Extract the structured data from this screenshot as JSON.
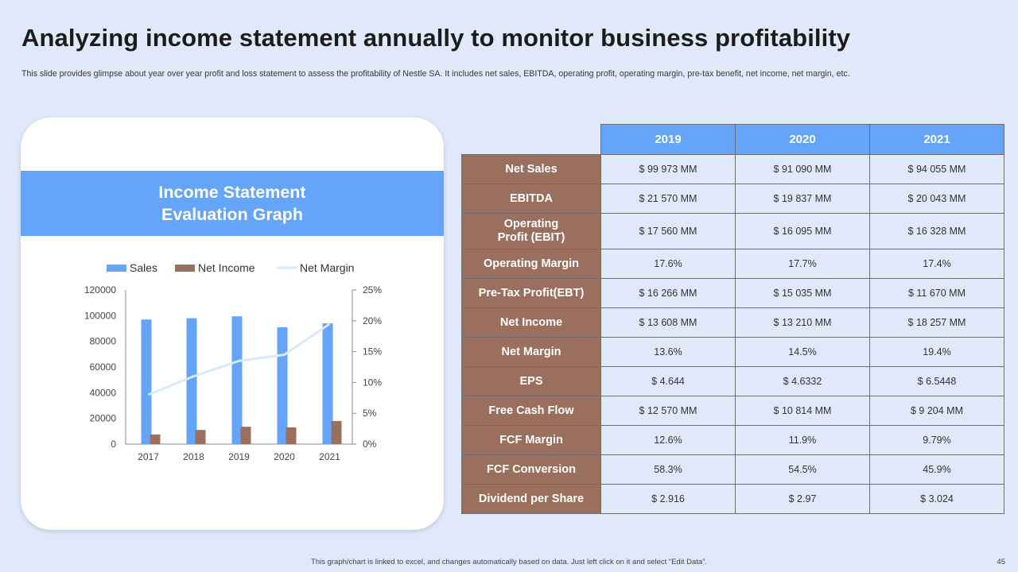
{
  "title": "Analyzing income statement annually to monitor business profitability",
  "subtitle": "This slide provides glimpse about year over year profit and loss statement to assess the profitability of Nestle SA.  It includes net sales, EBITDA,  operating profit, operating margin, pre-tax benefit, net income, net margin, etc.",
  "chart_banner": "Income Statement\nEvaluation Graph",
  "colors": {
    "sales": "#65a5f9",
    "net_income": "#9b6f5e",
    "net_margin": "#dbe8fa",
    "banner": "#65a5f9",
    "row_label_bg": "#9b6f5e",
    "cell_bg": "#dfe9fa",
    "page_bg": "#dfe9fa"
  },
  "chart_data": {
    "type": "bar",
    "title": "",
    "categories": [
      "2017",
      "2018",
      "2019",
      "2020",
      "2021"
    ],
    "series": [
      {
        "name": "Sales",
        "type": "bar",
        "axis": "left",
        "values": [
          97000,
          98000,
          99500,
          91000,
          94000
        ]
      },
      {
        "name": "Net Income",
        "type": "bar",
        "axis": "left",
        "values": [
          7500,
          11000,
          13500,
          13000,
          18000
        ]
      },
      {
        "name": "Net Margin",
        "type": "line",
        "axis": "right",
        "values": [
          8,
          11,
          13.5,
          14.5,
          19.5
        ]
      }
    ],
    "ylim": [
      0,
      120000
    ],
    "yticks": [
      "120000",
      "100000",
      "80000",
      "60000",
      "40000",
      "20000",
      "0"
    ],
    "y2lim": [
      0,
      25
    ],
    "y2ticks": [
      "25%",
      "20%",
      "15%",
      "10%",
      "5%",
      "0%"
    ],
    "legend_position": "top",
    "grid": false
  },
  "table": {
    "years": [
      "2019",
      "2020",
      "2021"
    ],
    "rows": [
      {
        "label": "Net Sales",
        "values": [
          "$ 99 973 MM",
          "$ 91 090 MM",
          "$ 94 055 MM"
        ]
      },
      {
        "label": "EBITDA",
        "values": [
          "$ 21 570 MM",
          "$ 19 837 MM",
          "$ 20 043 MM"
        ]
      },
      {
        "label": "Operating\nProfit (EBIT)",
        "values": [
          "$ 17 560 MM",
          "$ 16 095 MM",
          "$ 16 328 MM"
        ]
      },
      {
        "label": "Operating Margin",
        "values": [
          "17.6%",
          "17.7%",
          "17.4%"
        ]
      },
      {
        "label": "Pre-Tax Profit(EBT)",
        "values": [
          "$ 16 266 MM",
          "$ 15 035 MM",
          "$ 11 670 MM"
        ]
      },
      {
        "label": "Net Income",
        "values": [
          "$ 13 608 MM",
          "$ 13 210 MM",
          "$ 18 257 MM"
        ]
      },
      {
        "label": "Net Margin",
        "values": [
          "13.6%",
          "14.5%",
          "19.4%"
        ]
      },
      {
        "label": "EPS",
        "values": [
          "$ 4.644",
          "$ 4.6332",
          "$ 6.5448"
        ]
      },
      {
        "label": "Free Cash Flow",
        "values": [
          "$ 12 570 MM",
          "$ 10 814 MM",
          "$ 9 204 MM"
        ]
      },
      {
        "label": "FCF Margin",
        "values": [
          "12.6%",
          "11.9%",
          "9.79%"
        ]
      },
      {
        "label": "FCF Conversion",
        "values": [
          "58.3%",
          "54.5%",
          "45.9%"
        ]
      },
      {
        "label": "Dividend per Share",
        "values": [
          "$ 2.916",
          "$ 2.97",
          "$ 3.024"
        ]
      }
    ]
  },
  "footer_note": "This graph/chart is linked to excel, and changes automatically based on data.  Just left click on it and select “Edit Data”.",
  "page_number": "45"
}
